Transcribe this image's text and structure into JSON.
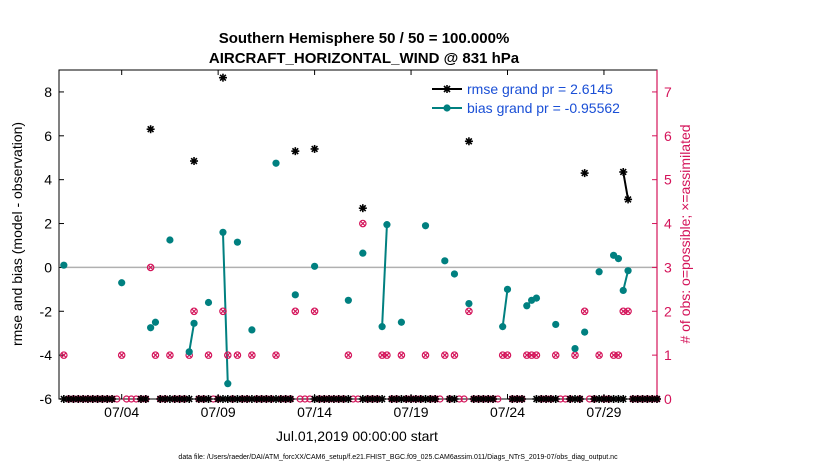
{
  "chart_data": {
    "type": "line",
    "title_line1": "Southern Hemisphere 50 / 50 = 100.000%",
    "title_line2": "AIRCRAFT_HORIZONTAL_WIND @ 831 hPa",
    "xlabel": "Jul.01,2019 00:00:00 start",
    "ylabel_left": "rmse and bias (model - observation)",
    "ylabel_right": "# of obs: o=possible; ×=assimilated",
    "xlim": [
      0.75,
      31.75
    ],
    "ylim_left": [
      -6,
      9
    ],
    "ylim_right": [
      0,
      7.5
    ],
    "x_ticks": [
      {
        "value": 4,
        "label": "07/04"
      },
      {
        "value": 9,
        "label": "07/09"
      },
      {
        "value": 14,
        "label": "07/14"
      },
      {
        "value": 19,
        "label": "07/19"
      },
      {
        "value": 24,
        "label": "07/24"
      },
      {
        "value": 29,
        "label": "07/29"
      }
    ],
    "y_ticks_left": [
      -6,
      -4,
      -2,
      0,
      2,
      4,
      6,
      8
    ],
    "y_ticks_right": [
      0,
      1,
      2,
      3,
      4,
      5,
      6,
      7
    ],
    "zero_line": 0,
    "legend": {
      "location": "top-right",
      "rmse_label": "rmse grand pr = 2.6145",
      "bias_label": "bias grand pr = -0.95562"
    },
    "colors": {
      "rmse": "#000000",
      "bias": "#008080",
      "obs": "#d4145a",
      "axis": "#000000",
      "zero": "#b0b0b0",
      "legend_text": "#1a4fd6"
    },
    "series": [
      {
        "name": "rmse",
        "axis": "left",
        "points": [
          {
            "x": 1.0,
            "y": -6.0
          },
          {
            "x": 1.25,
            "y": -6.0
          },
          {
            "x": 1.5,
            "y": -6.0
          },
          {
            "x": 1.75,
            "y": -6.0
          },
          {
            "x": 2.0,
            "y": -6.0
          },
          {
            "x": 2.25,
            "y": -6.0
          },
          {
            "x": 2.5,
            "y": -6.0
          },
          {
            "x": 2.75,
            "y": -6.0
          },
          {
            "x": 3.0,
            "y": -6.0
          },
          {
            "x": 3.25,
            "y": -6.0
          },
          {
            "x": 3.5,
            "y": -6.0
          },
          {
            "x": 5.0,
            "y": -6.0
          },
          {
            "x": 5.25,
            "y": -6.0
          },
          {
            "x": 5.5,
            "y": 6.3
          },
          {
            "x": 6.0,
            "y": -6.0
          },
          {
            "x": 6.25,
            "y": -6.0
          },
          {
            "x": 6.5,
            "y": -6.0
          },
          {
            "x": 6.75,
            "y": -6.0
          },
          {
            "x": 7.0,
            "y": -6.0
          },
          {
            "x": 7.25,
            "y": -6.0
          },
          {
            "x": 7.5,
            "y": -6.0
          },
          {
            "x": 8.0,
            "y": -6.0
          },
          {
            "x": 8.25,
            "y": -6.0
          },
          {
            "x": 8.5,
            "y": -6.0
          },
          {
            "x": 9.0,
            "y": -6.0
          },
          {
            "x": 9.25,
            "y": -6.0
          },
          {
            "x": 9.5,
            "y": -6.0
          },
          {
            "x": 9.75,
            "y": -6.0
          },
          {
            "x": 10.0,
            "y": -6.0
          },
          {
            "x": 10.25,
            "y": -6.0
          },
          {
            "x": 10.5,
            "y": -6.0
          },
          {
            "x": 10.75,
            "y": -6.0
          },
          {
            "x": 11.0,
            "y": -6.0
          },
          {
            "x": 11.25,
            "y": -6.0
          },
          {
            "x": 11.5,
            "y": -6.0
          },
          {
            "x": 11.75,
            "y": -6.0
          },
          {
            "x": 12.0,
            "y": -6.0
          },
          {
            "x": 12.25,
            "y": -6.0
          },
          {
            "x": 12.5,
            "y": -6.0
          },
          {
            "x": 12.75,
            "y": -6.0
          },
          {
            "x": 14.0,
            "y": -6.0
          },
          {
            "x": 14.25,
            "y": -6.0
          },
          {
            "x": 14.5,
            "y": -6.0
          },
          {
            "x": 14.75,
            "y": -6.0
          },
          {
            "x": 15.0,
            "y": -6.0
          },
          {
            "x": 15.25,
            "y": -6.0
          },
          {
            "x": 15.5,
            "y": -6.0
          },
          {
            "x": 15.75,
            "y": -6.0
          },
          {
            "x": 16.5,
            "y": -6.0
          },
          {
            "x": 16.75,
            "y": -6.0
          },
          {
            "x": 17.0,
            "y": -6.0
          },
          {
            "x": 17.25,
            "y": -6.0
          },
          {
            "x": 17.5,
            "y": -6.0
          },
          {
            "x": 18.0,
            "y": -6.0
          },
          {
            "x": 18.25,
            "y": -6.0
          },
          {
            "x": 18.5,
            "y": -6.0
          },
          {
            "x": 18.75,
            "y": -6.0
          },
          {
            "x": 19.0,
            "y": -6.0
          },
          {
            "x": 19.25,
            "y": -6.0
          },
          {
            "x": 19.5,
            "y": -6.0
          },
          {
            "x": 19.75,
            "y": -6.0
          },
          {
            "x": 20.0,
            "y": -6.0
          },
          {
            "x": 20.25,
            "y": -6.0
          },
          {
            "x": 21.0,
            "y": -6.0
          },
          {
            "x": 21.25,
            "y": -6.0
          },
          {
            "x": 22.25,
            "y": -6.0
          },
          {
            "x": 22.5,
            "y": -6.0
          },
          {
            "x": 22.75,
            "y": -6.0
          },
          {
            "x": 23.0,
            "y": -6.0
          },
          {
            "x": 23.25,
            "y": -6.0
          },
          {
            "x": 24.25,
            "y": -6.0
          },
          {
            "x": 24.5,
            "y": -6.0
          },
          {
            "x": 24.75,
            "y": -6.0
          },
          {
            "x": 25.5,
            "y": -6.0
          },
          {
            "x": 25.75,
            "y": -6.0
          },
          {
            "x": 26.0,
            "y": -6.0
          },
          {
            "x": 26.25,
            "y": -6.0
          },
          {
            "x": 26.5,
            "y": -6.0
          },
          {
            "x": 27.25,
            "y": -6.0
          },
          {
            "x": 27.5,
            "y": -6.0
          },
          {
            "x": 27.75,
            "y": -6.0
          },
          {
            "x": 28.5,
            "y": -6.0
          },
          {
            "x": 28.75,
            "y": -6.0
          },
          {
            "x": 29.0,
            "y": -6.0
          },
          {
            "x": 29.25,
            "y": -6.0
          },
          {
            "x": 29.5,
            "y": -6.0
          },
          {
            "x": 29.75,
            "y": -6.0
          },
          {
            "x": 30.0,
            "y": -6.0
          },
          {
            "x": 30.5,
            "y": -6.0
          },
          {
            "x": 30.75,
            "y": -6.0
          },
          {
            "x": 31.0,
            "y": -6.0
          },
          {
            "x": 31.25,
            "y": -6.0
          },
          {
            "x": 31.5,
            "y": -6.0
          },
          {
            "x": 31.75,
            "y": -6.0
          },
          {
            "x": 7.75,
            "y": 4.85
          },
          {
            "x": 9.25,
            "y": 8.65
          },
          {
            "x": 13.0,
            "y": 5.3
          },
          {
            "x": 14.0,
            "y": 5.4
          },
          {
            "x": 16.5,
            "y": 2.7
          },
          {
            "x": 22.0,
            "y": 5.75
          },
          {
            "x": 28.0,
            "y": 4.3
          },
          {
            "x": 30.0,
            "y": 4.35
          },
          {
            "x": 30.25,
            "y": 3.1
          }
        ],
        "segments": [
          [
            30.0,
            30.25
          ]
        ]
      },
      {
        "name": "bias",
        "axis": "left",
        "points": [
          {
            "x": 1.0,
            "y": 0.1
          },
          {
            "x": 4.0,
            "y": -0.7
          },
          {
            "x": 5.5,
            "y": -2.75
          },
          {
            "x": 5.75,
            "y": -2.5
          },
          {
            "x": 6.5,
            "y": 1.25
          },
          {
            "x": 7.5,
            "y": -3.85
          },
          {
            "x": 7.75,
            "y": -2.55
          },
          {
            "x": 8.5,
            "y": -1.6
          },
          {
            "x": 9.25,
            "y": 1.6
          },
          {
            "x": 9.5,
            "y": -5.3
          },
          {
            "x": 10.0,
            "y": 1.15
          },
          {
            "x": 10.75,
            "y": -2.85
          },
          {
            "x": 12.0,
            "y": 4.75
          },
          {
            "x": 13.0,
            "y": -1.25
          },
          {
            "x": 14.0,
            "y": 0.05
          },
          {
            "x": 15.75,
            "y": -1.5
          },
          {
            "x": 16.5,
            "y": 0.65
          },
          {
            "x": 17.5,
            "y": -2.7
          },
          {
            "x": 17.75,
            "y": 1.95
          },
          {
            "x": 18.5,
            "y": -2.5
          },
          {
            "x": 19.75,
            "y": 1.9
          },
          {
            "x": 20.75,
            "y": 0.3
          },
          {
            "x": 21.25,
            "y": -0.3
          },
          {
            "x": 22.0,
            "y": -1.65
          },
          {
            "x": 23.75,
            "y": -2.7
          },
          {
            "x": 24.0,
            "y": -1.0
          },
          {
            "x": 25.0,
            "y": -1.75
          },
          {
            "x": 25.25,
            "y": -1.5
          },
          {
            "x": 25.5,
            "y": -1.4
          },
          {
            "x": 26.5,
            "y": -2.6
          },
          {
            "x": 27.5,
            "y": -3.7
          },
          {
            "x": 28.0,
            "y": -2.95
          },
          {
            "x": 28.75,
            "y": -0.2
          },
          {
            "x": 29.5,
            "y": 0.55
          },
          {
            "x": 29.75,
            "y": 0.4
          },
          {
            "x": 30.0,
            "y": -1.05
          },
          {
            "x": 30.25,
            "y": -0.15
          }
        ],
        "segments": [
          [
            7.5,
            7.75
          ],
          [
            9.25,
            9.5
          ],
          [
            17.5,
            17.75
          ],
          [
            23.75,
            24.0
          ],
          [
            25.0,
            25.25
          ],
          [
            30.0,
            30.25
          ]
        ]
      },
      {
        "name": "obs_count",
        "axis": "right",
        "points": [
          {
            "x": 1.0,
            "y": 1
          },
          {
            "x": 4.0,
            "y": 1
          },
          {
            "x": 5.5,
            "y": 3
          },
          {
            "x": 5.75,
            "y": 1
          },
          {
            "x": 6.5,
            "y": 1
          },
          {
            "x": 7.5,
            "y": 1
          },
          {
            "x": 7.75,
            "y": 2
          },
          {
            "x": 8.5,
            "y": 1
          },
          {
            "x": 9.25,
            "y": 2
          },
          {
            "x": 9.5,
            "y": 1
          },
          {
            "x": 10.0,
            "y": 1
          },
          {
            "x": 10.75,
            "y": 1
          },
          {
            "x": 12.0,
            "y": 1
          },
          {
            "x": 13.0,
            "y": 2
          },
          {
            "x": 14.0,
            "y": 2
          },
          {
            "x": 15.75,
            "y": 1
          },
          {
            "x": 16.5,
            "y": 4
          },
          {
            "x": 17.5,
            "y": 1
          },
          {
            "x": 17.75,
            "y": 1
          },
          {
            "x": 18.5,
            "y": 1
          },
          {
            "x": 19.75,
            "y": 1
          },
          {
            "x": 20.75,
            "y": 1
          },
          {
            "x": 21.25,
            "y": 1
          },
          {
            "x": 22.0,
            "y": 2
          },
          {
            "x": 23.75,
            "y": 1
          },
          {
            "x": 24.0,
            "y": 1
          },
          {
            "x": 25.0,
            "y": 1
          },
          {
            "x": 25.25,
            "y": 1
          },
          {
            "x": 25.5,
            "y": 1
          },
          {
            "x": 26.5,
            "y": 1
          },
          {
            "x": 27.5,
            "y": 1
          },
          {
            "x": 28.0,
            "y": 2
          },
          {
            "x": 28.75,
            "y": 1
          },
          {
            "x": 29.5,
            "y": 1
          },
          {
            "x": 29.75,
            "y": 1
          },
          {
            "x": 30.0,
            "y": 2
          },
          {
            "x": 30.25,
            "y": 2
          }
        ],
        "zero_points_from": 1.0,
        "zero_points_to": 31.75,
        "zero_points_step": 0.25
      }
    ]
  },
  "footer": "data file: /Users/raeder/DAI/ATM_forcXX/CAM6_setup/f.e21.FHIST_BGC.f09_025.CAM6assim.011/Diags_NTrS_2019-07/obs_diag_output.nc"
}
